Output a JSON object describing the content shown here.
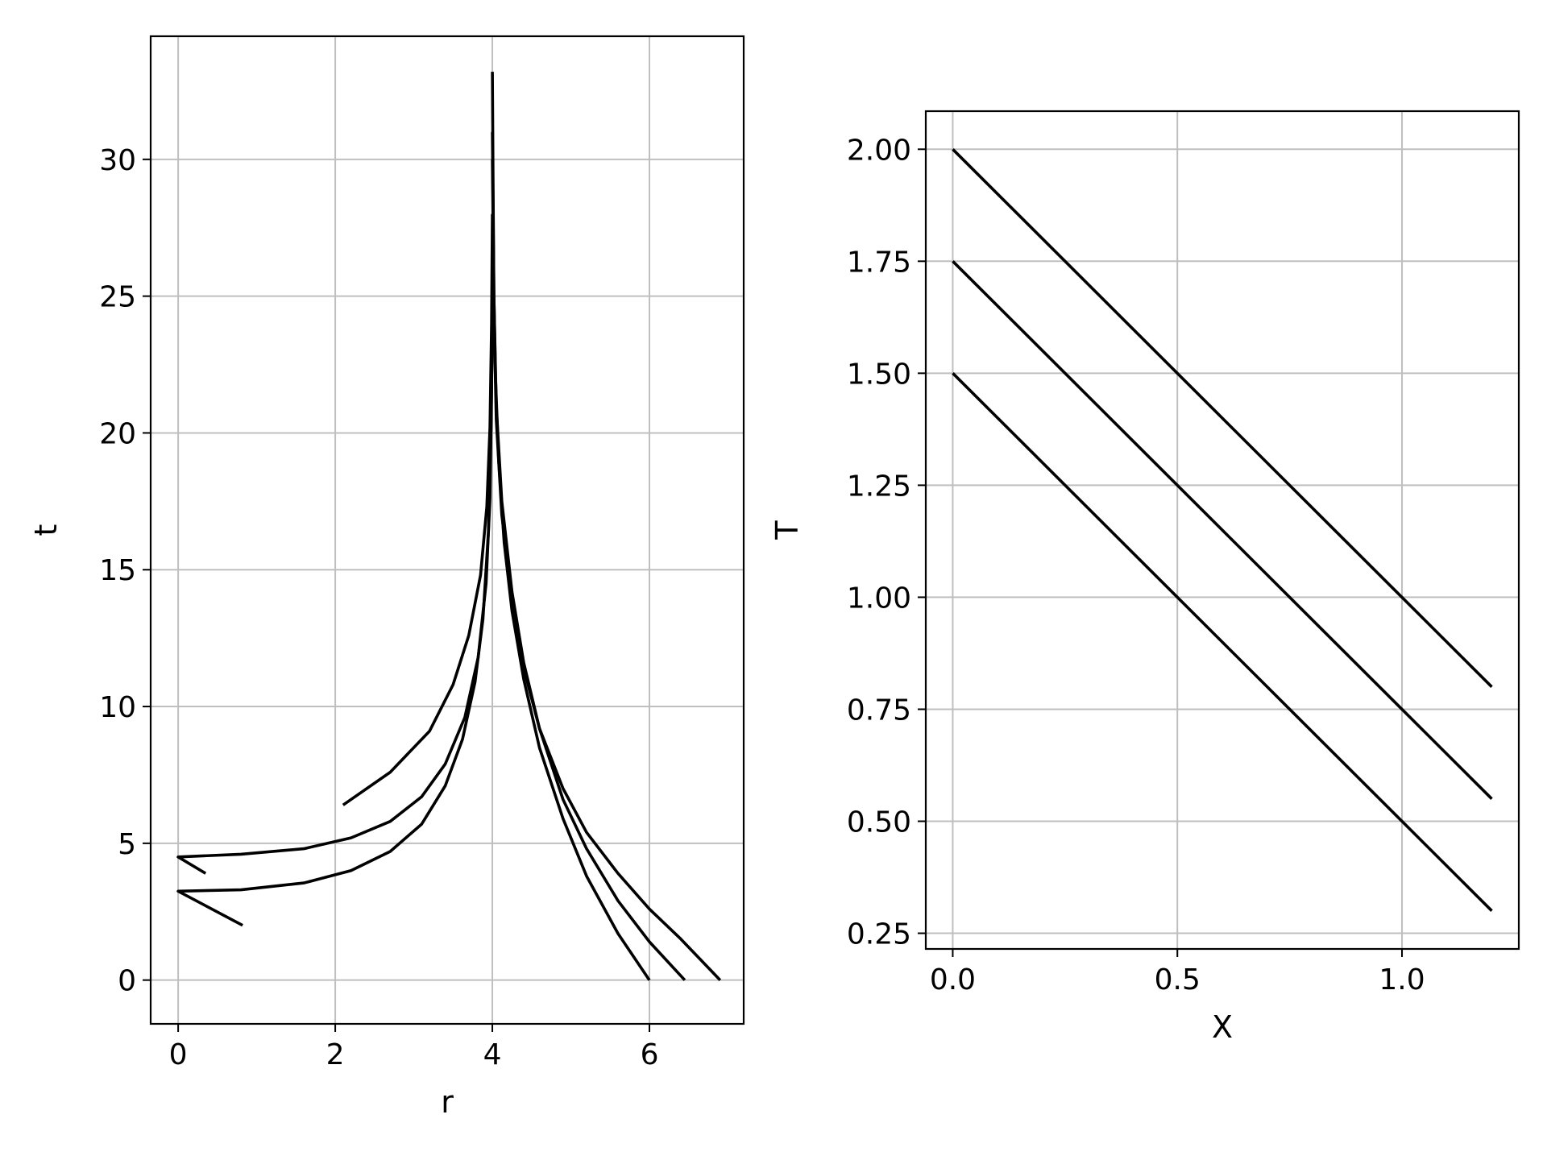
{
  "chart_data": [
    {
      "type": "line",
      "title": "",
      "xlabel": "r",
      "ylabel": "t",
      "xlim": [
        -0.35,
        7.2
      ],
      "ylim": [
        -1.6,
        34.5
      ],
      "xticks": [
        0,
        2,
        4,
        6
      ],
      "xtick_labels": [
        "0",
        "2",
        "4",
        "6"
      ],
      "yticks": [
        0,
        5,
        10,
        15,
        20,
        25,
        30
      ],
      "ytick_labels": [
        "0",
        "5",
        "10",
        "15",
        "20",
        "25",
        "30"
      ],
      "grid": true,
      "line_color": "#000000",
      "grid_color": "#bfbfbf",
      "series": [
        {
          "x": [
            6.0,
            5.6,
            5.2,
            4.9,
            4.6,
            4.4,
            4.25,
            4.15,
            4.08,
            4.04,
            4.02,
            4.01,
            4.0
          ],
          "y": [
            0,
            1.7,
            3.8,
            5.9,
            8.5,
            11.0,
            13.5,
            16.0,
            19.0,
            22.0,
            25.0,
            29.0,
            33.2
          ]
        },
        {
          "x": [
            6.45,
            6.0,
            5.6,
            5.2,
            4.9,
            4.6,
            4.4,
            4.25,
            4.12,
            4.05,
            4.02,
            4.0
          ],
          "y": [
            0,
            1.4,
            2.9,
            4.8,
            6.6,
            9.2,
            11.6,
            14.2,
            17.5,
            21.0,
            25.0,
            31.0
          ]
        },
        {
          "x": [
            6.9,
            6.4,
            6.0,
            5.6,
            5.2,
            4.9,
            4.6,
            4.4,
            4.25,
            4.12,
            4.05,
            4.02,
            4.0
          ],
          "y": [
            0,
            1.5,
            2.6,
            3.9,
            5.4,
            7.0,
            9.2,
            11.4,
            13.9,
            17.0,
            20.5,
            24.5,
            30.0
          ]
        },
        {
          "x": [
            2.1,
            2.7,
            3.2,
            3.5,
            3.7,
            3.85,
            3.93,
            3.97,
            3.99,
            4.0
          ],
          "y": [
            6.4,
            7.6,
            9.1,
            10.8,
            12.6,
            14.8,
            17.3,
            20.2,
            24.0,
            28.0
          ]
        },
        {
          "x": [
            0.35,
            0.0,
            0.8,
            1.6,
            2.2,
            2.7,
            3.1,
            3.4,
            3.65,
            3.82,
            3.92,
            3.97,
            3.99,
            4.0
          ],
          "y": [
            3.9,
            4.5,
            4.6,
            4.8,
            5.2,
            5.8,
            6.7,
            7.9,
            9.6,
            11.8,
            14.5,
            17.6,
            21.5,
            25.0
          ]
        },
        {
          "x": [
            0.82,
            0.0,
            0.8,
            1.6,
            2.2,
            2.7,
            3.1,
            3.4,
            3.62,
            3.78,
            3.88,
            3.95,
            3.98,
            4.0
          ],
          "y": [
            2.0,
            3.25,
            3.3,
            3.55,
            4.0,
            4.7,
            5.7,
            7.1,
            8.8,
            10.9,
            13.2,
            16.4,
            19.8,
            24.0
          ]
        }
      ]
    },
    {
      "type": "line",
      "title": "",
      "xlabel": "X",
      "ylabel": "T",
      "xlim": [
        -0.06,
        1.26
      ],
      "ylim": [
        0.215,
        2.085
      ],
      "xticks": [
        0.0,
        0.5,
        1.0
      ],
      "xtick_labels": [
        "0.0",
        "0.5",
        "1.0"
      ],
      "yticks": [
        0.25,
        0.5,
        0.75,
        1.0,
        1.25,
        1.5,
        1.75,
        2.0
      ],
      "ytick_labels": [
        "0.25",
        "0.50",
        "0.75",
        "1.00",
        "1.25",
        "1.50",
        "1.75",
        "2.00"
      ],
      "grid": true,
      "line_color": "#000000",
      "grid_color": "#bfbfbf",
      "series": [
        {
          "x": [
            0.0,
            1.2
          ],
          "y": [
            2.0,
            0.8
          ]
        },
        {
          "x": [
            0.0,
            1.2
          ],
          "y": [
            1.75,
            0.55
          ]
        },
        {
          "x": [
            0.0,
            1.2
          ],
          "y": [
            1.5,
            0.3
          ]
        }
      ]
    }
  ]
}
